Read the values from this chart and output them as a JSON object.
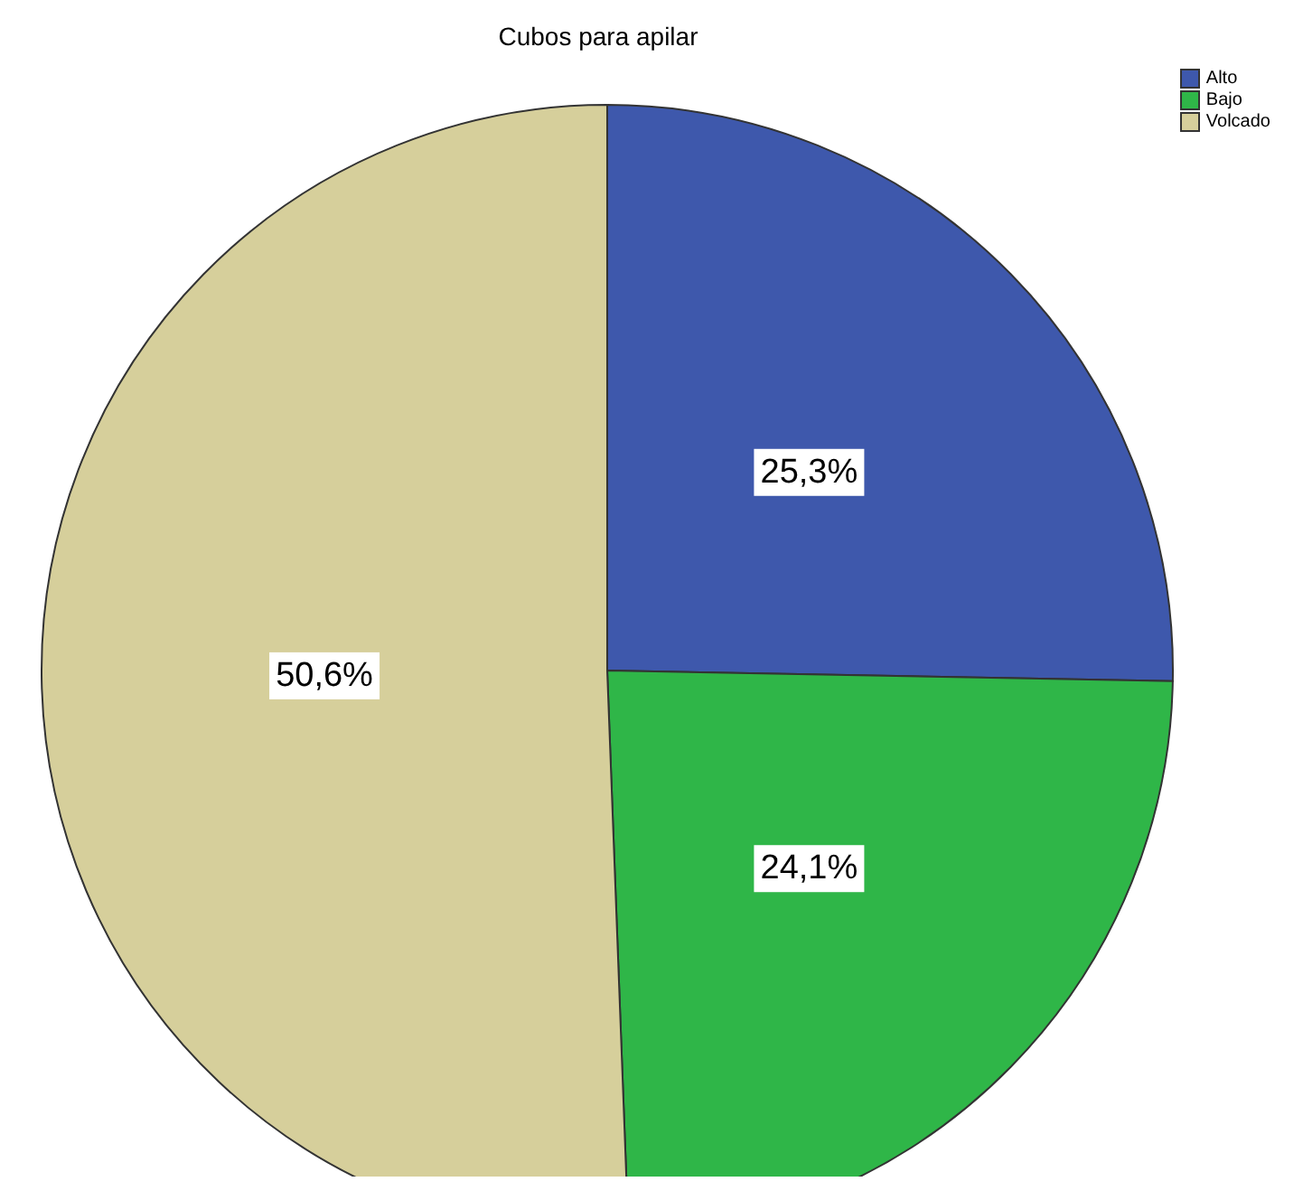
{
  "chart_data": {
    "type": "pie",
    "title": "Cubos para apilar",
    "categories": [
      "Alto",
      "Bajo",
      "Volcado"
    ],
    "values": [
      25.3,
      24.1,
      50.6
    ],
    "colors": [
      "#3e58ac",
      "#2fb648",
      "#d6cf9b"
    ],
    "value_labels": [
      "25,3%",
      "24,1%",
      "50,6%"
    ],
    "legend": "top right"
  }
}
